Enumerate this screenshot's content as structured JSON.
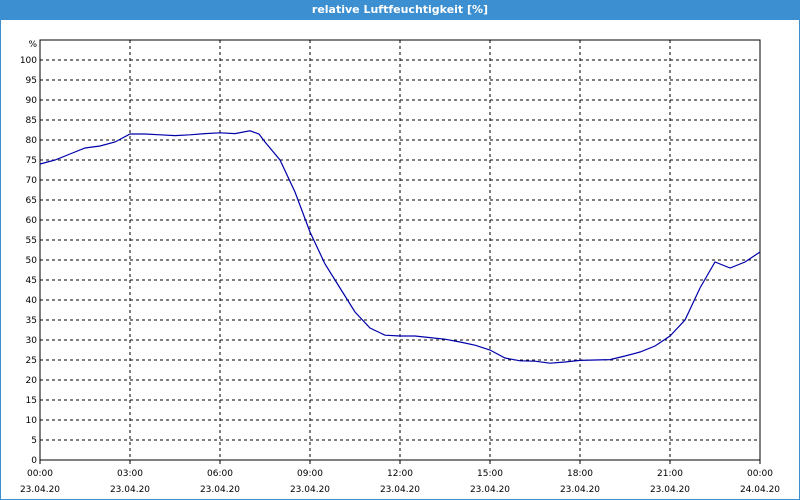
{
  "window": {
    "title": "relative Luftfeuchtigkeit [%]"
  },
  "colors": {
    "titlebar": "#3c8fd0",
    "series": "#0000aa",
    "grid": "#000000"
  },
  "chart_data": {
    "type": "line",
    "title": "relative Luftfeuchtigkeit [%]",
    "ylabel": "%",
    "xlabel": "",
    "ylim": [
      0,
      105
    ],
    "xlim": [
      0,
      24
    ],
    "grid": true,
    "gridStyle": "dashed",
    "yticks": [
      "0",
      "5",
      "10",
      "15",
      "20",
      "25",
      "30",
      "35",
      "40",
      "45",
      "50",
      "55",
      "60",
      "65",
      "70",
      "75",
      "80",
      "85",
      "90",
      "95",
      "100"
    ],
    "xticks": [
      {
        "time": "00:00",
        "date": "23.04.20"
      },
      {
        "time": "03:00",
        "date": "23.04.20"
      },
      {
        "time": "06:00",
        "date": "23.04.20"
      },
      {
        "time": "09:00",
        "date": "23.04.20"
      },
      {
        "time": "12:00",
        "date": "23.04.20"
      },
      {
        "time": "15:00",
        "date": "23.04.20"
      },
      {
        "time": "18:00",
        "date": "23.04.20"
      },
      {
        "time": "21:00",
        "date": "23.04.20"
      },
      {
        "time": "00:00",
        "date": "24.04.20"
      }
    ],
    "series": [
      {
        "name": "",
        "x": [
          0,
          0.5,
          1,
          1.5,
          2,
          2.5,
          3,
          3.5,
          4,
          4.5,
          5,
          5.5,
          6,
          6.5,
          7,
          7.3,
          7.5,
          8,
          8.5,
          9,
          9.5,
          10,
          10.5,
          11,
          11.5,
          12,
          12.5,
          13,
          13.5,
          14,
          14.5,
          15,
          15.5,
          16,
          16.5,
          17,
          17.5,
          18,
          18.5,
          19,
          19.5,
          20,
          20.5,
          21,
          21.5,
          22,
          22.5,
          23,
          23.5,
          24
        ],
        "y": [
          74,
          75,
          76.5,
          78,
          78.5,
          79.5,
          81.5,
          81.5,
          81.3,
          81.1,
          81.3,
          81.6,
          81.8,
          81.6,
          82.3,
          81.5,
          79.5,
          75,
          67,
          57,
          49,
          43,
          37,
          33,
          31.2,
          31,
          31,
          30.6,
          30.2,
          29.5,
          28.7,
          27.5,
          25.5,
          24.8,
          24.7,
          24.2,
          24.5,
          24.9,
          25,
          25.1,
          26,
          27,
          28.5,
          31,
          35,
          43,
          49.5,
          48,
          49.5,
          52
        ]
      }
    ]
  }
}
